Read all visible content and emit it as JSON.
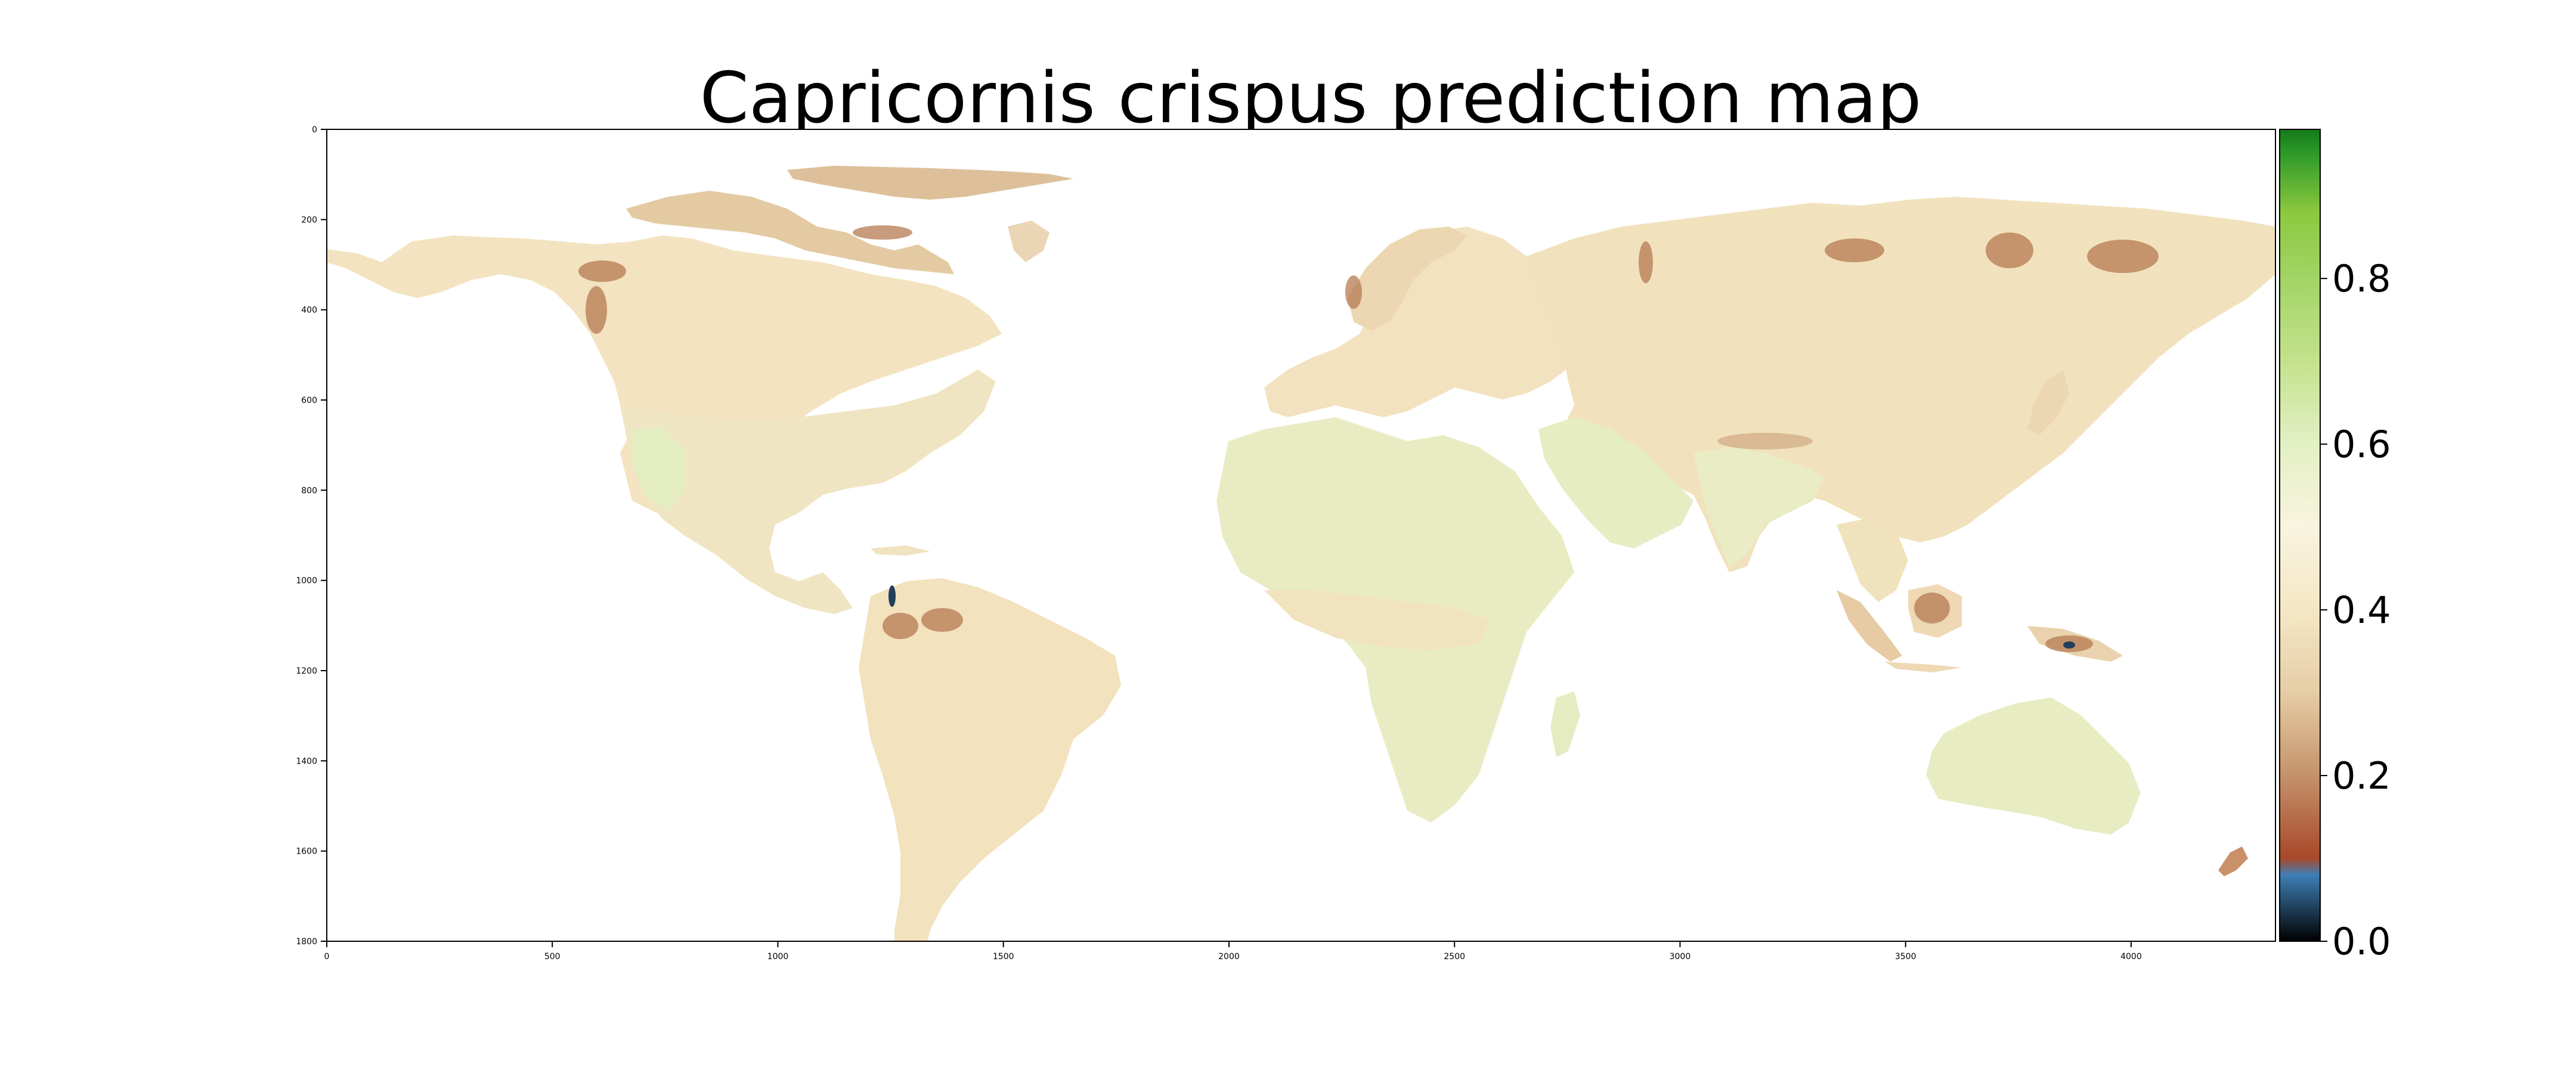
{
  "title": "Capricornis crispus prediction map",
  "map": {
    "x_ticks": [
      "0",
      "500",
      "1000",
      "1500",
      "2000",
      "2500",
      "3000",
      "3500",
      "4000"
    ],
    "y_ticks": [
      "0",
      "200",
      "400",
      "600",
      "800",
      "1000",
      "1200",
      "1400",
      "1600",
      "1800"
    ],
    "x_range": [
      0,
      4320
    ],
    "y_range": [
      0,
      1800
    ],
    "y_axis_inverted": true,
    "land_base_color": "#f3e4c2",
    "ocean_color": "#ffffff"
  },
  "colorbar": {
    "range": [
      0,
      0.98
    ],
    "ticks": [
      "0.0",
      "0.2",
      "0.4",
      "0.6",
      "0.8"
    ],
    "stops": [
      {
        "v": 0.0,
        "c": "#000000"
      },
      {
        "v": 0.04,
        "c": "#1f3f5a"
      },
      {
        "v": 0.08,
        "c": "#3d7fb5"
      },
      {
        "v": 0.1,
        "c": "#a8482a"
      },
      {
        "v": 0.2,
        "c": "#c4926a"
      },
      {
        "v": 0.3,
        "c": "#e6cda5"
      },
      {
        "v": 0.4,
        "c": "#f5e7c6"
      },
      {
        "v": 0.5,
        "c": "#f8f4df"
      },
      {
        "v": 0.6,
        "c": "#e3f0c4"
      },
      {
        "v": 0.7,
        "c": "#c3e28c"
      },
      {
        "v": 0.8,
        "c": "#a2d466"
      },
      {
        "v": 0.88,
        "c": "#8cc83e"
      },
      {
        "v": 0.95,
        "c": "#2f9a2a"
      },
      {
        "v": 0.98,
        "c": "#137a1a"
      }
    ]
  }
}
